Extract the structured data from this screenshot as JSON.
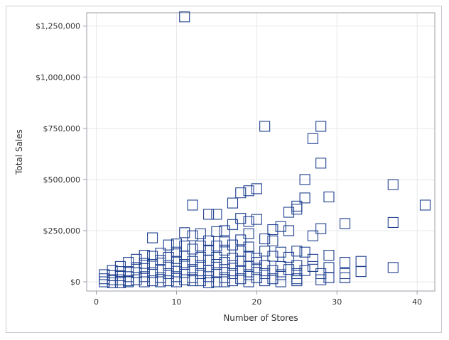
{
  "chart_data": {
    "type": "scatter",
    "xlabel": "Number of Stores",
    "ylabel": "Total Sales",
    "xlim": [
      -1.2,
      42.2
    ],
    "ylim": [
      -45000,
      1315000
    ],
    "x_ticks": [
      0,
      10,
      20,
      30,
      40
    ],
    "x_tick_labels": [
      "0",
      "10",
      "20",
      "30",
      "40"
    ],
    "y_ticks": [
      0,
      250000,
      500000,
      750000,
      1000000,
      1250000
    ],
    "y_tick_labels": [
      "$0",
      "$250,000",
      "$500,000",
      "$750,000",
      "$1,000,000",
      "$1,250,000"
    ],
    "grid": true,
    "marker": "open-square",
    "color": "#1e3f8f",
    "points": [
      [
        11,
        1295000
      ],
      [
        21,
        760000
      ],
      [
        28,
        760000
      ],
      [
        27,
        700000
      ],
      [
        28,
        580000
      ],
      [
        26,
        500000
      ],
      [
        37,
        475000
      ],
      [
        20,
        455000
      ],
      [
        19,
        445000
      ],
      [
        18,
        435000
      ],
      [
        29,
        415000
      ],
      [
        26,
        410000
      ],
      [
        17,
        385000
      ],
      [
        12,
        375000
      ],
      [
        41,
        375000
      ],
      [
        25,
        370000
      ],
      [
        25,
        355000
      ],
      [
        24,
        340000
      ],
      [
        14,
        330000
      ],
      [
        15,
        330000
      ],
      [
        18,
        310000
      ],
      [
        20,
        305000
      ],
      [
        19,
        295000
      ],
      [
        37,
        290000
      ],
      [
        31,
        285000
      ],
      [
        17,
        280000
      ],
      [
        23,
        270000
      ],
      [
        28,
        260000
      ],
      [
        22,
        255000
      ],
      [
        24,
        250000
      ],
      [
        15,
        245000
      ],
      [
        11,
        240000
      ],
      [
        13,
        235000
      ],
      [
        16,
        250000
      ],
      [
        19,
        235000
      ],
      [
        12,
        225000
      ],
      [
        7,
        215000
      ],
      [
        21,
        210000
      ],
      [
        27,
        225000
      ],
      [
        22,
        200000
      ],
      [
        18,
        205000
      ],
      [
        14,
        200000
      ],
      [
        16,
        195000
      ],
      [
        10,
        185000
      ],
      [
        9,
        180000
      ],
      [
        11,
        175000
      ],
      [
        13,
        175000
      ],
      [
        15,
        175000
      ],
      [
        17,
        180000
      ],
      [
        19,
        170000
      ],
      [
        12,
        160000
      ],
      [
        14,
        155000
      ],
      [
        16,
        155000
      ],
      [
        18,
        150000
      ],
      [
        21,
        150000
      ],
      [
        23,
        145000
      ],
      [
        25,
        150000
      ],
      [
        26,
        145000
      ],
      [
        8,
        140000
      ],
      [
        10,
        145000
      ],
      [
        29,
        130000
      ],
      [
        6,
        130000
      ],
      [
        7,
        125000
      ],
      [
        9,
        120000
      ],
      [
        11,
        125000
      ],
      [
        13,
        120000
      ],
      [
        15,
        120000
      ],
      [
        17,
        115000
      ],
      [
        19,
        125000
      ],
      [
        20,
        115000
      ],
      [
        22,
        125000
      ],
      [
        24,
        120000
      ],
      [
        27,
        110000
      ],
      [
        5,
        110000
      ],
      [
        8,
        105000
      ],
      [
        10,
        100000
      ],
      [
        12,
        100000
      ],
      [
        14,
        105000
      ],
      [
        16,
        95000
      ],
      [
        18,
        100000
      ],
      [
        20,
        95000
      ],
      [
        33,
        100000
      ],
      [
        31,
        95000
      ],
      [
        4,
        95000
      ],
      [
        6,
        90000
      ],
      [
        7,
        85000
      ],
      [
        9,
        80000
      ],
      [
        11,
        85000
      ],
      [
        13,
        80000
      ],
      [
        15,
        85000
      ],
      [
        17,
        80000
      ],
      [
        19,
        75000
      ],
      [
        21,
        80000
      ],
      [
        23,
        75000
      ],
      [
        25,
        80000
      ],
      [
        27,
        75000
      ],
      [
        29,
        70000
      ],
      [
        37,
        70000
      ],
      [
        3,
        75000
      ],
      [
        5,
        70000
      ],
      [
        6,
        65000
      ],
      [
        8,
        60000
      ],
      [
        10,
        65000
      ],
      [
        12,
        60000
      ],
      [
        14,
        55000
      ],
      [
        16,
        60000
      ],
      [
        18,
        55000
      ],
      [
        20,
        60000
      ],
      [
        22,
        55000
      ],
      [
        24,
        60000
      ],
      [
        26,
        55000
      ],
      [
        2,
        55000
      ],
      [
        3,
        50000
      ],
      [
        4,
        50000
      ],
      [
        5,
        45000
      ],
      [
        7,
        45000
      ],
      [
        9,
        40000
      ],
      [
        11,
        45000
      ],
      [
        13,
        40000
      ],
      [
        15,
        45000
      ],
      [
        17,
        40000
      ],
      [
        19,
        35000
      ],
      [
        21,
        40000
      ],
      [
        23,
        35000
      ],
      [
        25,
        40000
      ],
      [
        28,
        40000
      ],
      [
        31,
        40000
      ],
      [
        33,
        50000
      ],
      [
        1,
        35000
      ],
      [
        2,
        30000
      ],
      [
        3,
        30000
      ],
      [
        4,
        25000
      ],
      [
        6,
        25000
      ],
      [
        8,
        20000
      ],
      [
        10,
        25000
      ],
      [
        12,
        20000
      ],
      [
        14,
        25000
      ],
      [
        16,
        20000
      ],
      [
        18,
        15000
      ],
      [
        20,
        20000
      ],
      [
        22,
        15000
      ],
      [
        25,
        15000
      ],
      [
        29,
        20000
      ],
      [
        31,
        20000
      ],
      [
        1,
        15000
      ],
      [
        2,
        10000
      ],
      [
        3,
        10000
      ],
      [
        4,
        5000
      ],
      [
        5,
        10000
      ],
      [
        7,
        5000
      ],
      [
        9,
        5000
      ],
      [
        11,
        10000
      ],
      [
        13,
        5000
      ],
      [
        15,
        0
      ],
      [
        17,
        5000
      ],
      [
        19,
        0
      ],
      [
        21,
        5000
      ],
      [
        23,
        0
      ],
      [
        25,
        5000
      ],
      [
        28,
        10000
      ],
      [
        1,
        0
      ],
      [
        2,
        -5000
      ],
      [
        3,
        -5000
      ],
      [
        4,
        0
      ],
      [
        6,
        0
      ],
      [
        8,
        0
      ],
      [
        10,
        0
      ],
      [
        12,
        5000
      ],
      [
        14,
        -5000
      ],
      [
        16,
        0
      ]
    ]
  }
}
